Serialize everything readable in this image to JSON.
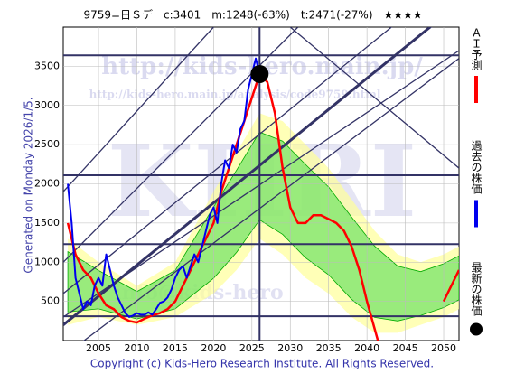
{
  "chart_data": {
    "type": "line",
    "title": "9759=日Ｓデ　c:3401　m:1248(-63%)　t:2471(-27%)　★★★★",
    "generated": "Generated on Monday 2026/1/5.",
    "copyright": "Copyright (c) Kids-Hero Research Institute. All Rights Reserved.",
    "watermarks": [
      "http://kids-hero.main.jp/",
      "http://kids-hero.main.jp/analysis/code9759.html",
      "KHRI",
      "info@kids-hero"
    ],
    "xlim": [
      2000.4,
      2052
    ],
    "ylim": [
      0,
      4000
    ],
    "xticks": [
      2005,
      2010,
      2015,
      2020,
      2025,
      2030,
      2035,
      2040,
      2045,
      2050
    ],
    "yticks": [
      500,
      1000,
      1500,
      2000,
      2500,
      3000,
      3500
    ],
    "grid": true,
    "series": [
      {
        "name": "ＡＩ予測",
        "color": "#ff0000",
        "x": [
          2001,
          2002,
          2003,
          2004,
          2005,
          2006,
          2007,
          2008,
          2009,
          2010,
          2011,
          2012,
          2013,
          2014,
          2015,
          2016,
          2017,
          2018,
          2019,
          2020,
          2021,
          2022,
          2023,
          2024,
          2025,
          2026,
          2027,
          2028,
          2029,
          2030,
          2031,
          2032,
          2033,
          2034,
          2035,
          2036,
          2037,
          2038,
          2039,
          2040,
          2041,
          2042,
          2046,
          2050,
          2052
        ],
        "values": [
          1500,
          1100,
          900,
          800,
          600,
          450,
          400,
          300,
          250,
          230,
          280,
          320,
          350,
          400,
          500,
          700,
          900,
          1100,
          1300,
          1500,
          1900,
          2200,
          2500,
          2800,
          3100,
          3400,
          3300,
          2900,
          2200,
          1700,
          1500,
          1500,
          1600,
          1600,
          1550,
          1500,
          1400,
          1200,
          900,
          500,
          150,
          -200,
          null,
          500,
          900
        ]
      },
      {
        "name": "過去の株価",
        "color": "#0000ee",
        "x": [
          2001,
          2001.5,
          2002,
          2002.5,
          2003,
          2003.5,
          2004,
          2004.5,
          2005,
          2005.5,
          2006,
          2006.5,
          2007,
          2007.5,
          2008,
          2008.5,
          2009,
          2009.5,
          2010,
          2010.5,
          2011,
          2011.5,
          2012,
          2012.5,
          2013,
          2013.5,
          2014,
          2014.5,
          2015,
          2015.5,
          2016,
          2016.5,
          2017,
          2017.5,
          2018,
          2018.5,
          2019,
          2019.5,
          2020,
          2020.5,
          2021,
          2021.5,
          2022,
          2022.5,
          2023,
          2023.5,
          2024,
          2024.5,
          2025,
          2025.5,
          2026
        ],
        "values": [
          2000,
          1500,
          800,
          600,
          400,
          500,
          450,
          700,
          800,
          700,
          1100,
          900,
          700,
          550,
          450,
          350,
          300,
          320,
          350,
          330,
          330,
          360,
          330,
          400,
          480,
          500,
          550,
          650,
          800,
          900,
          950,
          800,
          950,
          1100,
          1000,
          1200,
          1400,
          1600,
          1700,
          1500,
          2000,
          2300,
          2200,
          2500,
          2400,
          2700,
          2800,
          3200,
          3400,
          3600,
          3400
        ]
      }
    ],
    "band": {
      "x": [
        2001,
        2005,
        2010,
        2015,
        2020,
        2023,
        2026,
        2029,
        2032,
        2035,
        2038,
        2041,
        2044,
        2047,
        2050,
        2052
      ],
      "upper": [
        1300,
        1000,
        700,
        1000,
        1900,
        2400,
        2900,
        2800,
        2500,
        2200,
        1800,
        1400,
        1100,
        1000,
        1100,
        1200
      ],
      "lower": [
        200,
        300,
        200,
        300,
        600,
        900,
        1300,
        1100,
        800,
        600,
        300,
        100,
        100,
        200,
        300,
        400
      ]
    },
    "hlines": [
      3640,
      2110,
      1230,
      310
    ],
    "vline": 2026,
    "trend_lines": [
      [
        2000.4,
        1900,
        2020,
        4000
      ],
      [
        2000.4,
        1000,
        2031,
        4000
      ],
      [
        2000.4,
        200,
        2052,
        4300
      ],
      [
        2000.4,
        600,
        2052,
        4700
      ],
      [
        2000.4,
        -200,
        2052,
        3600
      ],
      [
        2000.4,
        300,
        2052,
        3700
      ],
      [
        2030,
        4000,
        2052,
        2200
      ]
    ],
    "latest": {
      "name": "最新の株価",
      "x": 2026,
      "y": 3401
    }
  }
}
